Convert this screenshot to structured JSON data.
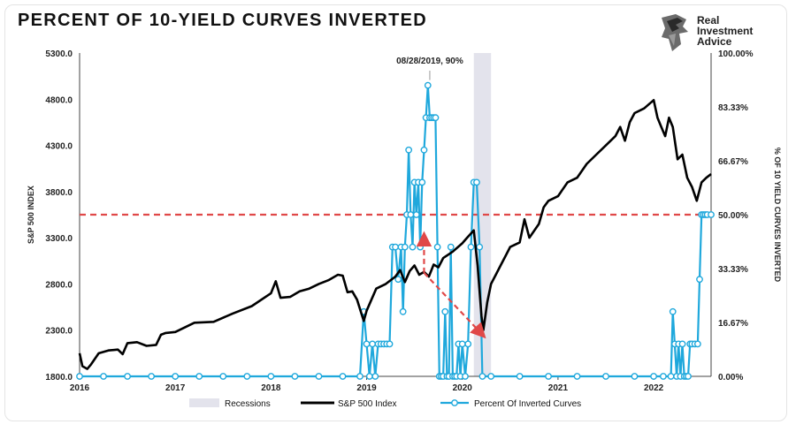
{
  "title": "PERCENT OF 10-YIELD CURVES INVERTED",
  "logo": {
    "text": [
      "Real",
      "Investment",
      "Advice"
    ],
    "icon": "eagle-logo-icon"
  },
  "colors": {
    "sp500": "#000000",
    "inverted": "#1fa8dc",
    "reference": "#e04848",
    "arrow": "#e04848",
    "recession": "#e3e3ec"
  },
  "chart_data": {
    "type": "line",
    "xlabel": "",
    "ylabel": "S&P 500 INDEX",
    "y2label": "% OF 10 YIELD CURVES INVERTED",
    "x_ticks": [
      "2016",
      "2017",
      "2018",
      "2019",
      "2020",
      "2021",
      "2022"
    ],
    "x_range": [
      2016,
      2022.6
    ],
    "ylim": [
      1800,
      5300
    ],
    "y_ticks": [
      "1800.0",
      "2300.0",
      "2800.0",
      "3300.0",
      "3800.0",
      "4300.0",
      "4800.0",
      "5300.0"
    ],
    "y2lim": [
      0,
      100
    ],
    "y2_ticks": [
      "0.00%",
      "16.67%",
      "33.33%",
      "50.00%",
      "66.67%",
      "83.33%",
      "100.00%"
    ],
    "recession": {
      "start": 2020.12,
      "end": 2020.3
    },
    "reference_line": 50,
    "annotation": {
      "text": "08/28/2019, 90%",
      "x": 2019.66,
      "y2": 90
    },
    "arrows": [
      {
        "from": [
          2019.6,
          2920
        ],
        "to": [
          2019.6,
          3330
        ]
      },
      {
        "from": [
          2019.6,
          2920
        ],
        "to": [
          2020.22,
          2240
        ]
      }
    ],
    "legend": [
      {
        "label": "Recessions",
        "kind": "area"
      },
      {
        "label": "S&P 500 Index",
        "kind": "line"
      },
      {
        "label": "Percent Of Inverted Curves",
        "kind": "line-marker"
      }
    ],
    "legend_position": "bottom",
    "series": [
      {
        "name": "S&P 500 Index",
        "axis": "left",
        "x": [
          2016.0,
          2016.03,
          2016.08,
          2016.12,
          2016.2,
          2016.3,
          2016.4,
          2016.45,
          2016.5,
          2016.6,
          2016.7,
          2016.8,
          2016.85,
          2016.9,
          2017.0,
          2017.2,
          2017.4,
          2017.6,
          2017.8,
          2018.0,
          2018.05,
          2018.1,
          2018.2,
          2018.3,
          2018.4,
          2018.5,
          2018.6,
          2018.7,
          2018.75,
          2018.8,
          2018.85,
          2018.9,
          2018.97,
          2019.0,
          2019.1,
          2019.2,
          2019.3,
          2019.35,
          2019.4,
          2019.45,
          2019.5,
          2019.55,
          2019.6,
          2019.65,
          2019.7,
          2019.75,
          2019.8,
          2019.9,
          2020.0,
          2020.05,
          2020.12,
          2020.16,
          2020.2,
          2020.22,
          2020.26,
          2020.3,
          2020.35,
          2020.4,
          2020.45,
          2020.5,
          2020.6,
          2020.65,
          2020.7,
          2020.8,
          2020.85,
          2020.9,
          2021.0,
          2021.1,
          2021.2,
          2021.3,
          2021.4,
          2021.5,
          2021.6,
          2021.65,
          2021.7,
          2021.75,
          2021.8,
          2021.9,
          2022.0,
          2022.04,
          2022.08,
          2022.12,
          2022.16,
          2022.2,
          2022.25,
          2022.3,
          2022.35,
          2022.4,
          2022.45,
          2022.5,
          2022.55,
          2022.6
        ],
        "values": [
          2050,
          1910,
          1880,
          1930,
          2050,
          2080,
          2090,
          2040,
          2160,
          2170,
          2130,
          2140,
          2250,
          2270,
          2280,
          2380,
          2390,
          2480,
          2560,
          2700,
          2830,
          2650,
          2660,
          2720,
          2750,
          2800,
          2840,
          2900,
          2890,
          2710,
          2720,
          2630,
          2400,
          2510,
          2750,
          2800,
          2880,
          2950,
          2820,
          2940,
          3000,
          2900,
          2930,
          2880,
          3010,
          2980,
          3080,
          3150,
          3240,
          3300,
          3380,
          3000,
          2450,
          2300,
          2600,
          2800,
          2900,
          3000,
          3100,
          3200,
          3250,
          3500,
          3300,
          3450,
          3630,
          3700,
          3750,
          3900,
          3950,
          4100,
          4200,
          4300,
          4400,
          4500,
          4350,
          4550,
          4650,
          4700,
          4790,
          4600,
          4500,
          4400,
          4600,
          4500,
          4150,
          4200,
          3950,
          3850,
          3700,
          3900,
          3950,
          3990
        ]
      },
      {
        "name": "Percent Of Inverted Curves",
        "axis": "right",
        "x": [
          2016.0,
          2016.25,
          2016.5,
          2016.75,
          2017.0,
          2017.25,
          2017.5,
          2017.75,
          2018.0,
          2018.25,
          2018.5,
          2018.75,
          2018.93,
          2018.97,
          2019.0,
          2019.03,
          2019.06,
          2019.09,
          2019.12,
          2019.15,
          2019.18,
          2019.21,
          2019.24,
          2019.27,
          2019.3,
          2019.33,
          2019.36,
          2019.38,
          2019.4,
          2019.42,
          2019.44,
          2019.46,
          2019.48,
          2019.5,
          2019.52,
          2019.54,
          2019.56,
          2019.58,
          2019.6,
          2019.62,
          2019.64,
          2019.66,
          2019.68,
          2019.7,
          2019.72,
          2019.74,
          2019.76,
          2019.78,
          2019.8,
          2019.82,
          2019.84,
          2019.86,
          2019.88,
          2019.9,
          2019.92,
          2019.94,
          2019.96,
          2019.98,
          2020.0,
          2020.03,
          2020.06,
          2020.09,
          2020.12,
          2020.15,
          2020.18,
          2020.21,
          2020.3,
          2020.6,
          2020.9,
          2021.2,
          2021.5,
          2021.8,
          2022.0,
          2022.1,
          2022.18,
          2022.2,
          2022.22,
          2022.24,
          2022.26,
          2022.28,
          2022.3,
          2022.32,
          2022.34,
          2022.36,
          2022.38,
          2022.4,
          2022.43,
          2022.46,
          2022.48,
          2022.5,
          2022.52,
          2022.54,
          2022.56,
          2022.6
        ],
        "values": [
          0,
          0,
          0,
          0,
          0,
          0,
          0,
          0,
          0,
          0,
          0,
          0,
          0,
          20,
          10,
          0,
          10,
          0,
          10,
          10,
          10,
          10,
          10,
          40,
          40,
          30,
          40,
          20,
          40,
          50,
          70,
          50,
          40,
          60,
          50,
          60,
          40,
          60,
          70,
          80,
          90,
          80,
          80,
          80,
          80,
          40,
          0,
          0,
          0,
          20,
          0,
          0,
          40,
          0,
          0,
          0,
          10,
          0,
          10,
          0,
          10,
          40,
          60,
          60,
          40,
          0,
          0,
          0,
          0,
          0,
          0,
          0,
          0,
          0,
          0,
          20,
          10,
          0,
          10,
          0,
          10,
          0,
          0,
          0,
          10,
          10,
          10,
          10,
          30,
          50,
          50,
          50,
          50,
          50
        ]
      }
    ]
  }
}
